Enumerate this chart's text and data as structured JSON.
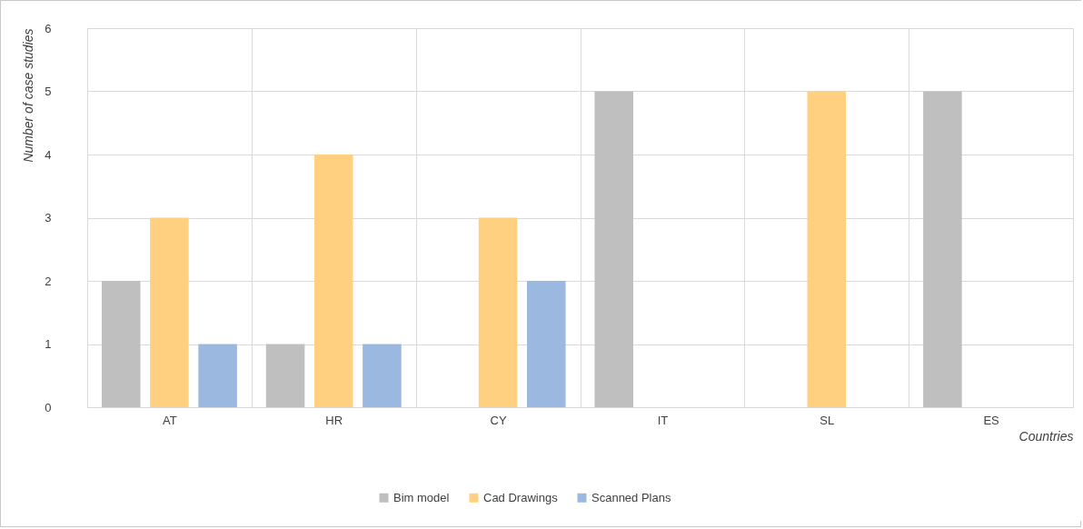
{
  "chart_data": {
    "type": "bar",
    "xlabel": "Countries",
    "ylabel": "Number of case studies",
    "categories": [
      "AT",
      "HR",
      "CY",
      "IT",
      "SL",
      "ES"
    ],
    "series": [
      {
        "name": "Bim model",
        "color": "#bfbfbf",
        "values": [
          2,
          1,
          0,
          5,
          0,
          5
        ]
      },
      {
        "name": "Cad Drawings",
        "color": "#ffd07f",
        "values": [
          3,
          4,
          3,
          0,
          5,
          0
        ]
      },
      {
        "name": "Scanned Plans",
        "color": "#9bb9e0",
        "values": [
          1,
          1,
          2,
          0,
          0,
          0
        ]
      }
    ],
    "ylim": [
      0,
      6
    ],
    "yticks": [
      0,
      1,
      2,
      3,
      4,
      5,
      6
    ],
    "grid": true,
    "legend": "bottom"
  }
}
